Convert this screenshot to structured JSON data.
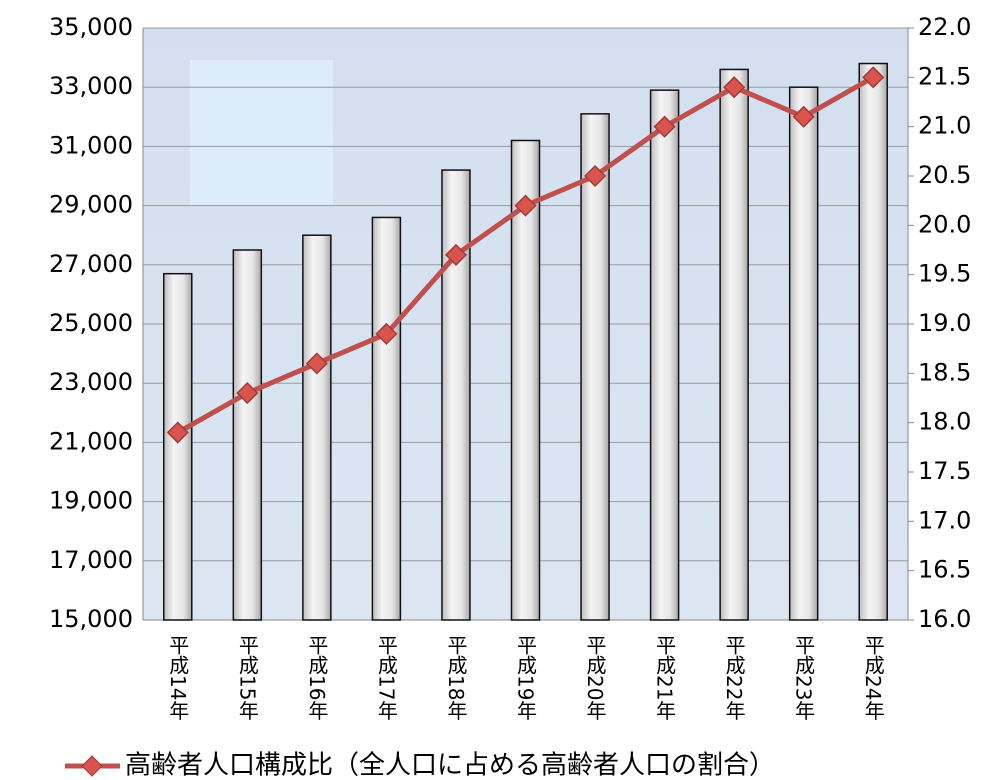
{
  "chart_data": {
    "type": "bar",
    "categories": [
      "平成14年",
      "平成15年",
      "平成16年",
      "平成17年",
      "平成18年",
      "平成19年",
      "平成20年",
      "平成21年",
      "平成22年",
      "平成23年",
      "平成24年"
    ],
    "series": [
      {
        "type": "bar",
        "color": "#e8e8e8",
        "values": [
          26700,
          27500,
          28000,
          28600,
          30200,
          31200,
          32100,
          32900,
          33600,
          33000,
          33800
        ]
      },
      {
        "type": "line",
        "name": "高齢者人口構成比（全人口に占める高齢者人口の割合）",
        "color": "#c0504d",
        "axis": "y2",
        "values": [
          17.9,
          18.3,
          18.6,
          18.9,
          19.7,
          20.2,
          20.5,
          21.0,
          21.4,
          21.1,
          21.5
        ]
      }
    ],
    "ylim": [
      15000,
      35000
    ],
    "yticks": [
      {
        "value": 15000,
        "label": "15,000"
      },
      {
        "value": 17000,
        "label": "17,000"
      },
      {
        "value": 19000,
        "label": "19,000"
      },
      {
        "value": 21000,
        "label": "21,000"
      },
      {
        "value": 23000,
        "label": "23,000"
      },
      {
        "value": 25000,
        "label": "25,000"
      },
      {
        "value": 27000,
        "label": "27,000"
      },
      {
        "value": 29000,
        "label": "29,000"
      },
      {
        "value": 31000,
        "label": "31,000"
      },
      {
        "value": 33000,
        "label": "33,000"
      },
      {
        "value": 35000,
        "label": "35,000"
      }
    ],
    "y2lim": [
      16,
      22
    ],
    "y2ticks": [
      {
        "value": 16,
        "label": "16.0"
      },
      16.5,
      {
        "value": 17,
        "label": "17.0"
      },
      17.5,
      {
        "value": 18,
        "label": "18.0"
      },
      18.5,
      {
        "value": 19,
        "label": "19.0"
      },
      19.5,
      {
        "value": 20,
        "label": "20.0"
      },
      20.5,
      {
        "value": 21,
        "label": "21.0"
      },
      21.5,
      {
        "value": 22,
        "label": "22.0"
      }
    ],
    "grid": true,
    "legend": "bottom"
  }
}
